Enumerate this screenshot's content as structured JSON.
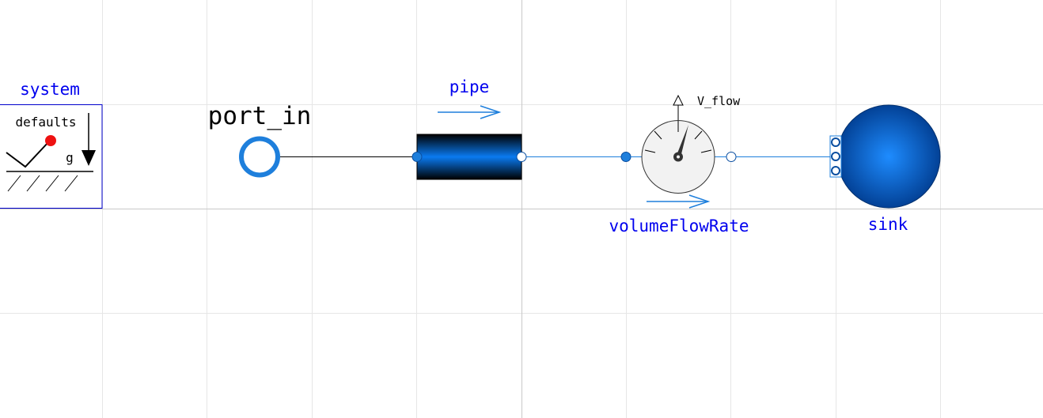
{
  "system": {
    "label": "system",
    "defaults_text": "defaults",
    "g_text": "g"
  },
  "port_in": {
    "label": "port_in"
  },
  "pipe": {
    "label": "pipe"
  },
  "volume_flow_rate": {
    "label": "volumeFlowRate",
    "output_label": "V_flow"
  },
  "sink": {
    "label": "sink"
  },
  "colors": {
    "label_blue": "#0000ee",
    "fluid_blue": "#1e7fdc",
    "pipe_dark": "#000000",
    "grid": "#e6e6e6"
  }
}
